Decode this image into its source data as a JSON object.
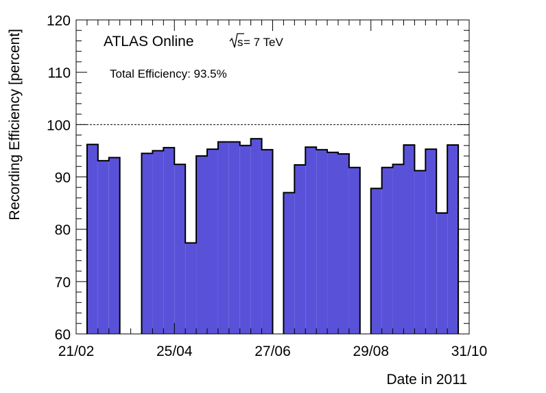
{
  "chart_data": {
    "type": "bar",
    "xlabel": "Date in 2011",
    "ylabel": "Recording Efficiency [percent]",
    "ylim": [
      60,
      120
    ],
    "yticks": [
      "60",
      "70",
      "80",
      "90",
      "100",
      "110",
      "120"
    ],
    "x_range": [
      "21/02",
      "31/10"
    ],
    "xticks": [
      "21/02",
      "25/04",
      "27/06",
      "29/08",
      "31/10"
    ],
    "reference_line": 100,
    "annotations": {
      "experiment": "ATLAS Online",
      "energy_sqrt": "s",
      "energy_value": " = 7 TeV",
      "total_efficiency": "Total Efficiency: 93.5%"
    },
    "fill_color": "#5952d9",
    "bin_width_days": 7,
    "bins": [
      {
        "week_start": "28/02",
        "value": 96.2
      },
      {
        "week_start": "07/03",
        "value": 93.1
      },
      {
        "week_start": "14/03",
        "value": 93.7
      },
      {
        "week_start": "21/03",
        "value": null
      },
      {
        "week_start": "28/03",
        "value": null
      },
      {
        "week_start": "04/04",
        "value": 94.5
      },
      {
        "week_start": "11/04",
        "value": 95.0
      },
      {
        "week_start": "18/04",
        "value": 95.6
      },
      {
        "week_start": "25/04",
        "value": 92.4
      },
      {
        "week_start": "02/05",
        "value": 77.4
      },
      {
        "week_start": "09/05",
        "value": 94.0
      },
      {
        "week_start": "16/05",
        "value": 95.3
      },
      {
        "week_start": "23/05",
        "value": 96.7
      },
      {
        "week_start": "30/05",
        "value": 96.7
      },
      {
        "week_start": "06/06",
        "value": 96.0
      },
      {
        "week_start": "13/06",
        "value": 97.3
      },
      {
        "week_start": "20/06",
        "value": 95.2
      },
      {
        "week_start": "27/06",
        "value": null
      },
      {
        "week_start": "04/07",
        "value": 87.0
      },
      {
        "week_start": "11/07",
        "value": 92.3
      },
      {
        "week_start": "18/07",
        "value": 95.7
      },
      {
        "week_start": "25/07",
        "value": 95.2
      },
      {
        "week_start": "01/08",
        "value": 94.7
      },
      {
        "week_start": "08/08",
        "value": 94.4
      },
      {
        "week_start": "15/08",
        "value": 91.8
      },
      {
        "week_start": "22/08",
        "value": null
      },
      {
        "week_start": "29/08",
        "value": 87.8
      },
      {
        "week_start": "05/09",
        "value": 91.8
      },
      {
        "week_start": "12/09",
        "value": 92.4
      },
      {
        "week_start": "19/09",
        "value": 96.1
      },
      {
        "week_start": "26/09",
        "value": 91.2
      },
      {
        "week_start": "03/10",
        "value": 95.3
      },
      {
        "week_start": "10/10",
        "value": 83.1
      },
      {
        "week_start": "17/10",
        "value": 96.1
      }
    ]
  }
}
